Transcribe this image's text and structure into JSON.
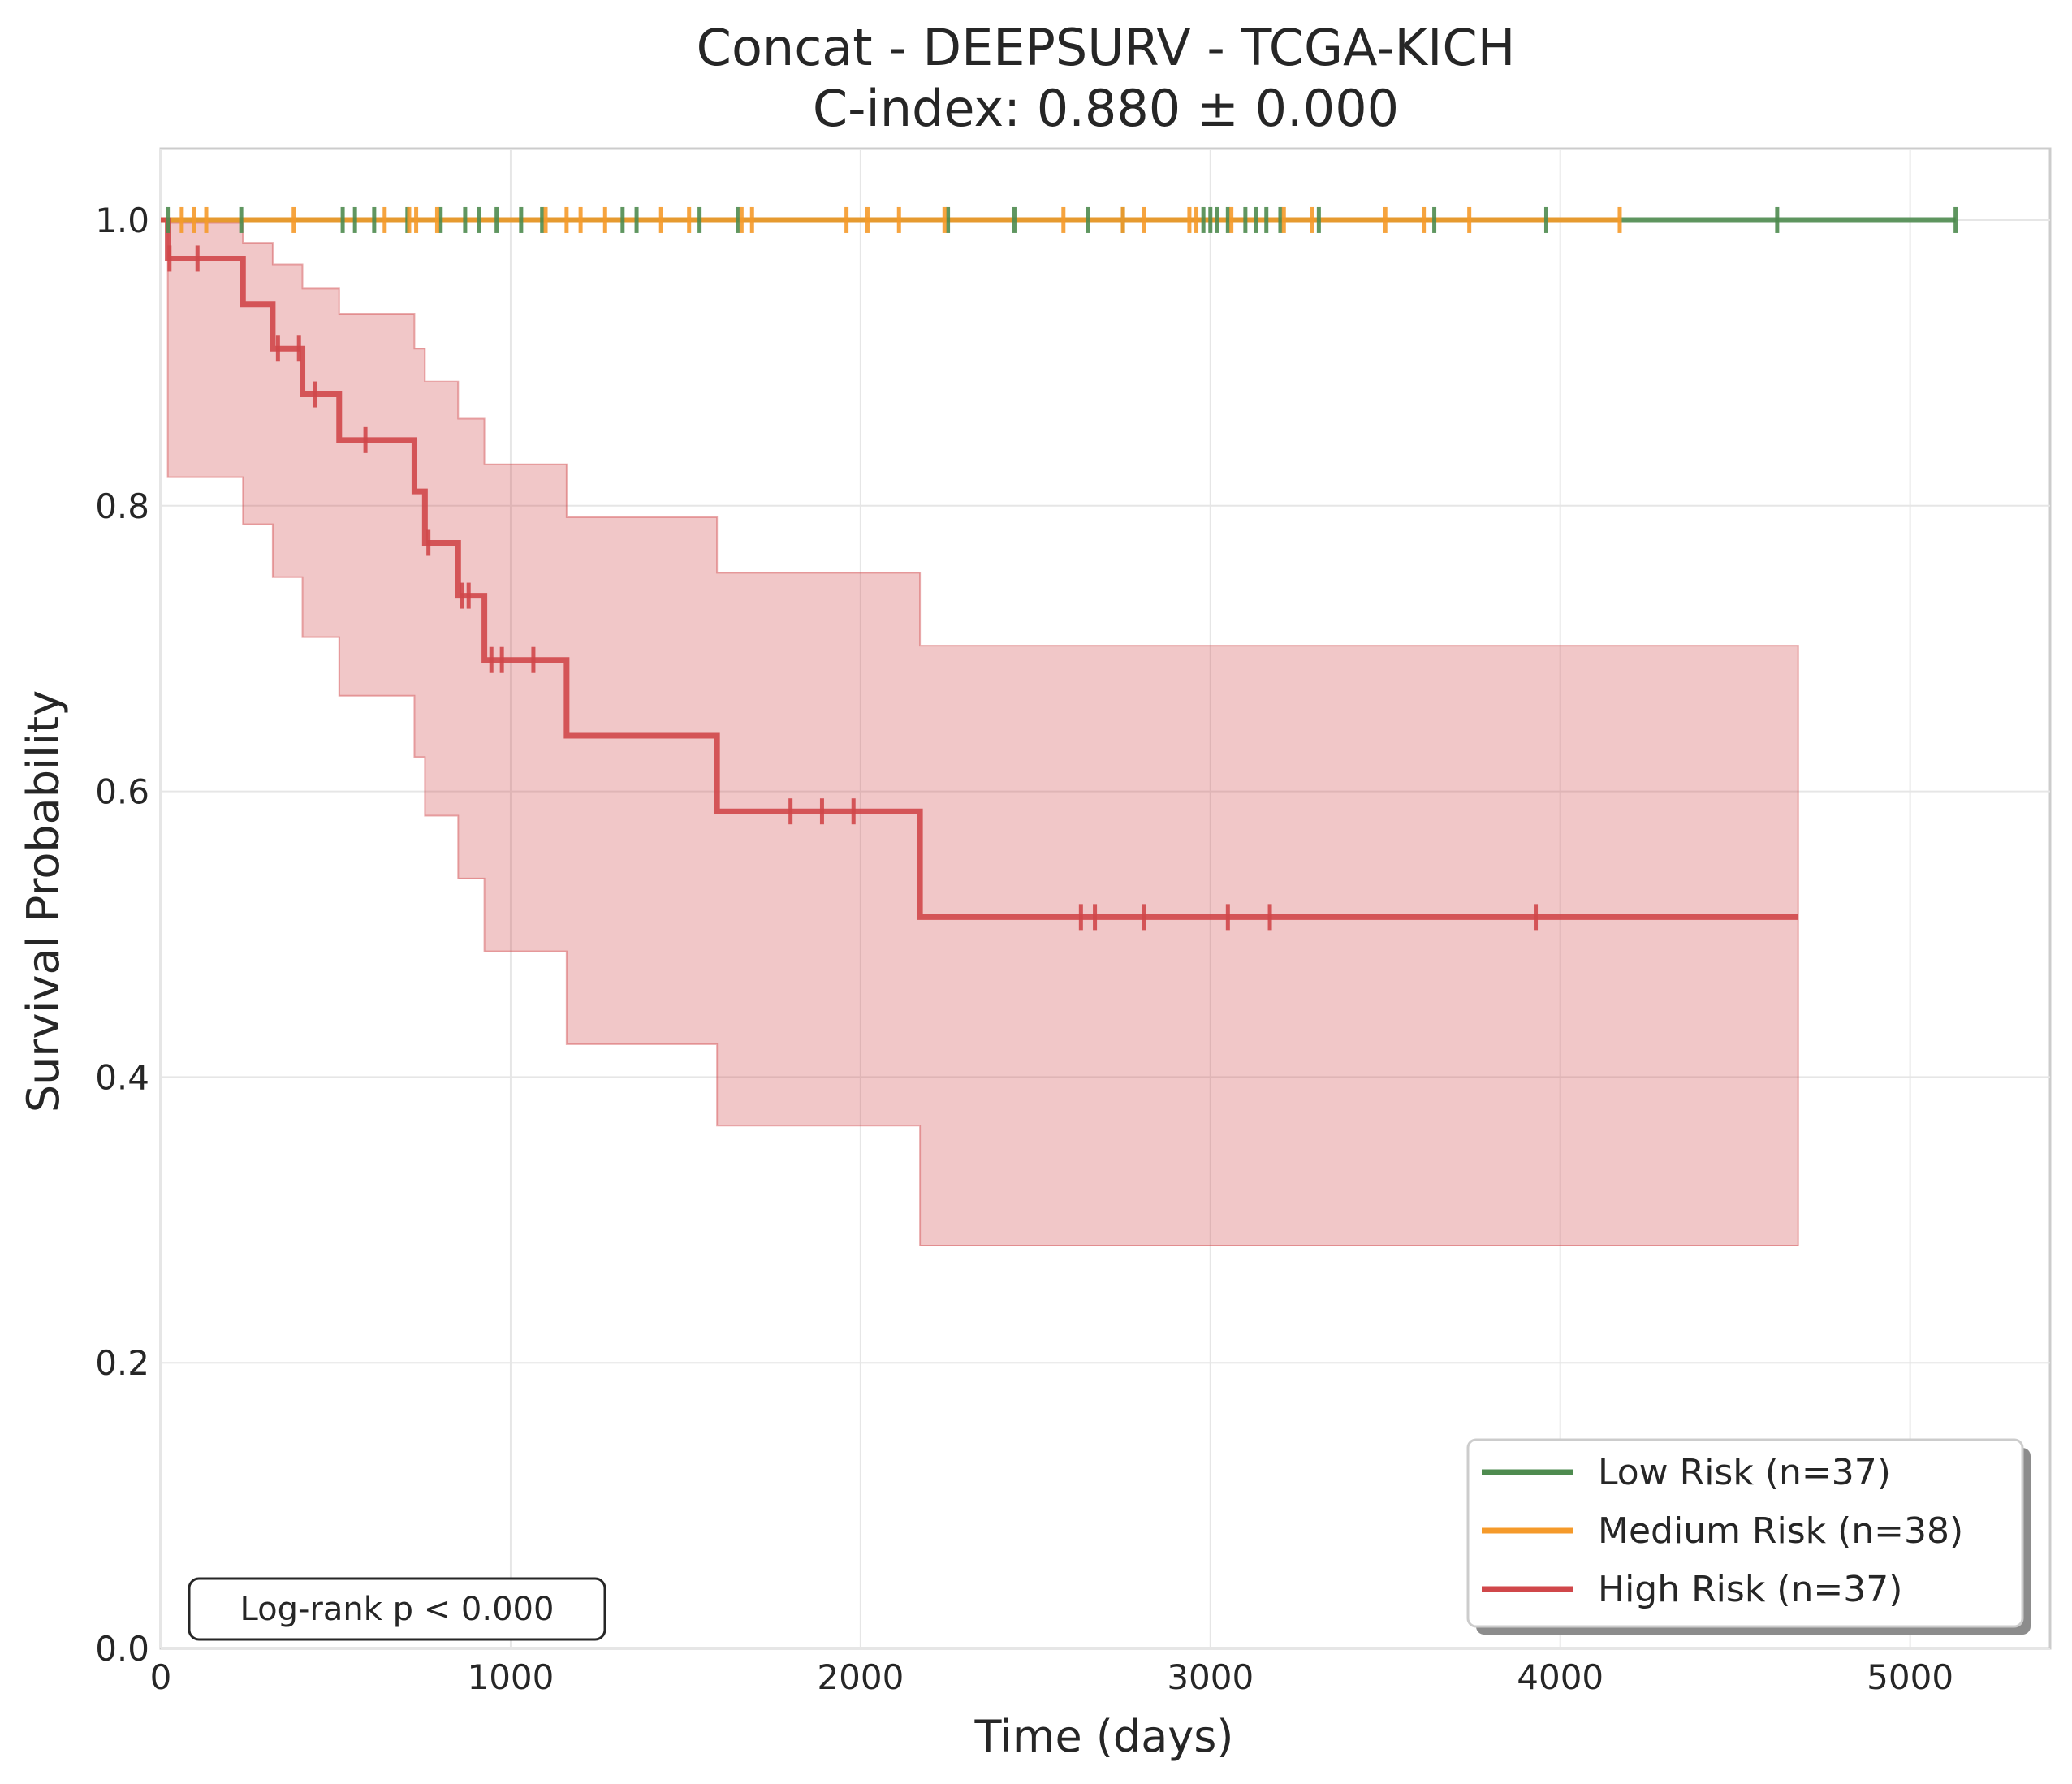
{
  "chart_data": {
    "type": "line",
    "subtype": "kaplan-meier",
    "title": "Concat - DEEPSURV - TCGA-KICH",
    "subtitle": "C-index: 0.880 ± 0.000",
    "xlabel": "Time (days)",
    "ylabel": "Survival Probability",
    "xlim": [
      0,
      5400
    ],
    "ylim": [
      0,
      1.05
    ],
    "xticks": [
      0,
      1000,
      2000,
      3000,
      4000,
      5000
    ],
    "xtick_labels": [
      "0",
      "1000",
      "2000",
      "3000",
      "4000",
      "5000"
    ],
    "yticks": [
      0.0,
      0.2,
      0.4,
      0.6,
      0.8,
      1.0
    ],
    "ytick_labels": [
      "0.0",
      "0.2",
      "0.4",
      "0.6",
      "0.8",
      "1.0"
    ],
    "grid": true,
    "legend_position": "bottom-right",
    "annotation": "Log-rank p < 0.000",
    "series": [
      {
        "name": "Low Risk (n=37)",
        "color": "#4e8b4f",
        "steps": [
          [
            0,
            1.0
          ],
          [
            5130,
            1.0
          ]
        ],
        "censored": [
          [
            20,
            1.0
          ],
          [
            230,
            1.0
          ],
          [
            520,
            1.0
          ],
          [
            555,
            1.0
          ],
          [
            610,
            1.0
          ],
          [
            705,
            1.0
          ],
          [
            800,
            1.0
          ],
          [
            870,
            1.0
          ],
          [
            910,
            1.0
          ],
          [
            960,
            1.0
          ],
          [
            1030,
            1.0
          ],
          [
            1090,
            1.0
          ],
          [
            1320,
            1.0
          ],
          [
            1360,
            1.0
          ],
          [
            1540,
            1.0
          ],
          [
            1650,
            1.0
          ],
          [
            2250,
            1.0
          ],
          [
            2440,
            1.0
          ],
          [
            2650,
            1.0
          ],
          [
            2750,
            1.0
          ],
          [
            2980,
            1.0
          ],
          [
            3000,
            1.0
          ],
          [
            3020,
            1.0
          ],
          [
            3050,
            1.0
          ],
          [
            3100,
            1.0
          ],
          [
            3130,
            1.0
          ],
          [
            3160,
            1.0
          ],
          [
            3200,
            1.0
          ],
          [
            3310,
            1.0
          ],
          [
            3640,
            1.0
          ],
          [
            3960,
            1.0
          ],
          [
            4620,
            1.0
          ],
          [
            5130,
            1.0
          ]
        ],
        "ci": []
      },
      {
        "name": "Medium Risk (n=38)",
        "color": "#f59a2a",
        "steps": [
          [
            0,
            1.0
          ],
          [
            4170,
            1.0
          ]
        ],
        "censored": [
          [
            60,
            1.0
          ],
          [
            95,
            1.0
          ],
          [
            130,
            1.0
          ],
          [
            380,
            1.0
          ],
          [
            640,
            1.0
          ],
          [
            710,
            1.0
          ],
          [
            730,
            1.0
          ],
          [
            790,
            1.0
          ],
          [
            1100,
            1.0
          ],
          [
            1160,
            1.0
          ],
          [
            1200,
            1.0
          ],
          [
            1270,
            1.0
          ],
          [
            1430,
            1.0
          ],
          [
            1510,
            1.0
          ],
          [
            1660,
            1.0
          ],
          [
            1690,
            1.0
          ],
          [
            1960,
            1.0
          ],
          [
            2020,
            1.0
          ],
          [
            2110,
            1.0
          ],
          [
            2240,
            1.0
          ],
          [
            2580,
            1.0
          ],
          [
            2750,
            1.0
          ],
          [
            2810,
            1.0
          ],
          [
            2940,
            1.0
          ],
          [
            2960,
            1.0
          ],
          [
            3060,
            1.0
          ],
          [
            3210,
            1.0
          ],
          [
            3290,
            1.0
          ],
          [
            3500,
            1.0
          ],
          [
            3610,
            1.0
          ],
          [
            3740,
            1.0
          ],
          [
            4170,
            1.0
          ]
        ],
        "ci": []
      },
      {
        "name": "High Risk (n=37)",
        "color": "#d0474a",
        "steps": [
          [
            0,
            1.0
          ],
          [
            20,
            0.973
          ],
          [
            235,
            0.941
          ],
          [
            320,
            0.91
          ],
          [
            405,
            0.878
          ],
          [
            510,
            0.846
          ],
          [
            725,
            0.81
          ],
          [
            755,
            0.774
          ],
          [
            850,
            0.737
          ],
          [
            925,
            0.692
          ],
          [
            1160,
            0.639
          ],
          [
            1590,
            0.586
          ],
          [
            2170,
            0.512
          ],
          [
            4680,
            0.512
          ]
        ],
        "censored": [
          [
            25,
            0.973
          ],
          [
            105,
            0.973
          ],
          [
            335,
            0.91
          ],
          [
            395,
            0.91
          ],
          [
            440,
            0.878
          ],
          [
            585,
            0.846
          ],
          [
            765,
            0.774
          ],
          [
            860,
            0.737
          ],
          [
            880,
            0.737
          ],
          [
            945,
            0.692
          ],
          [
            975,
            0.692
          ],
          [
            1065,
            0.692
          ],
          [
            1800,
            0.586
          ],
          [
            1890,
            0.586
          ],
          [
            1980,
            0.586
          ],
          [
            2630,
            0.512
          ],
          [
            2670,
            0.512
          ],
          [
            2810,
            0.512
          ],
          [
            3050,
            0.512
          ],
          [
            3170,
            0.512
          ],
          [
            3930,
            0.512
          ]
        ],
        "ci": [
          [
            0,
            1.0,
            1.0
          ],
          [
            20,
            0.82,
            0.998
          ],
          [
            235,
            0.787,
            0.984
          ],
          [
            320,
            0.75,
            0.969
          ],
          [
            405,
            0.708,
            0.952
          ],
          [
            510,
            0.667,
            0.934
          ],
          [
            725,
            0.624,
            0.91
          ],
          [
            755,
            0.583,
            0.887
          ],
          [
            850,
            0.539,
            0.861
          ],
          [
            925,
            0.488,
            0.829
          ],
          [
            1160,
            0.423,
            0.792
          ],
          [
            1590,
            0.366,
            0.753
          ],
          [
            2170,
            0.282,
            0.702
          ],
          [
            4680,
            0.282,
            0.702
          ]
        ]
      }
    ]
  }
}
